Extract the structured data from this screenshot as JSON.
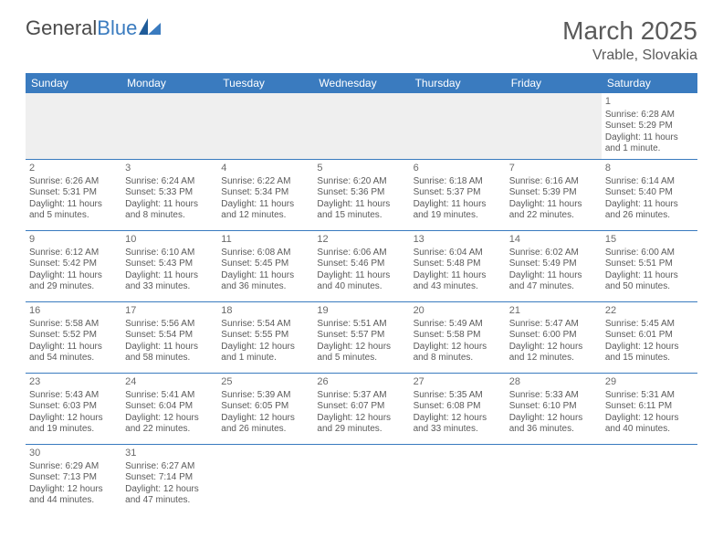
{
  "brand": {
    "part1": "General",
    "part2": "Blue"
  },
  "title": "March 2025",
  "location": "Vrable, Slovakia",
  "colors": {
    "header_bg": "#3a7bbf",
    "border": "#3a7bbf",
    "blank_bg": "#efefef",
    "text": "#5a5a5a",
    "white": "#ffffff"
  },
  "day_headers": [
    "Sunday",
    "Monday",
    "Tuesday",
    "Wednesday",
    "Thursday",
    "Friday",
    "Saturday"
  ],
  "weeks": [
    [
      {
        "n": "",
        "sr": "",
        "ss": "",
        "dl": ""
      },
      {
        "n": "",
        "sr": "",
        "ss": "",
        "dl": ""
      },
      {
        "n": "",
        "sr": "",
        "ss": "",
        "dl": ""
      },
      {
        "n": "",
        "sr": "",
        "ss": "",
        "dl": ""
      },
      {
        "n": "",
        "sr": "",
        "ss": "",
        "dl": ""
      },
      {
        "n": "",
        "sr": "",
        "ss": "",
        "dl": ""
      },
      {
        "n": "1",
        "sr": "Sunrise: 6:28 AM",
        "ss": "Sunset: 5:29 PM",
        "dl": "Daylight: 11 hours and 1 minute."
      }
    ],
    [
      {
        "n": "2",
        "sr": "Sunrise: 6:26 AM",
        "ss": "Sunset: 5:31 PM",
        "dl": "Daylight: 11 hours and 5 minutes."
      },
      {
        "n": "3",
        "sr": "Sunrise: 6:24 AM",
        "ss": "Sunset: 5:33 PM",
        "dl": "Daylight: 11 hours and 8 minutes."
      },
      {
        "n": "4",
        "sr": "Sunrise: 6:22 AM",
        "ss": "Sunset: 5:34 PM",
        "dl": "Daylight: 11 hours and 12 minutes."
      },
      {
        "n": "5",
        "sr": "Sunrise: 6:20 AM",
        "ss": "Sunset: 5:36 PM",
        "dl": "Daylight: 11 hours and 15 minutes."
      },
      {
        "n": "6",
        "sr": "Sunrise: 6:18 AM",
        "ss": "Sunset: 5:37 PM",
        "dl": "Daylight: 11 hours and 19 minutes."
      },
      {
        "n": "7",
        "sr": "Sunrise: 6:16 AM",
        "ss": "Sunset: 5:39 PM",
        "dl": "Daylight: 11 hours and 22 minutes."
      },
      {
        "n": "8",
        "sr": "Sunrise: 6:14 AM",
        "ss": "Sunset: 5:40 PM",
        "dl": "Daylight: 11 hours and 26 minutes."
      }
    ],
    [
      {
        "n": "9",
        "sr": "Sunrise: 6:12 AM",
        "ss": "Sunset: 5:42 PM",
        "dl": "Daylight: 11 hours and 29 minutes."
      },
      {
        "n": "10",
        "sr": "Sunrise: 6:10 AM",
        "ss": "Sunset: 5:43 PM",
        "dl": "Daylight: 11 hours and 33 minutes."
      },
      {
        "n": "11",
        "sr": "Sunrise: 6:08 AM",
        "ss": "Sunset: 5:45 PM",
        "dl": "Daylight: 11 hours and 36 minutes."
      },
      {
        "n": "12",
        "sr": "Sunrise: 6:06 AM",
        "ss": "Sunset: 5:46 PM",
        "dl": "Daylight: 11 hours and 40 minutes."
      },
      {
        "n": "13",
        "sr": "Sunrise: 6:04 AM",
        "ss": "Sunset: 5:48 PM",
        "dl": "Daylight: 11 hours and 43 minutes."
      },
      {
        "n": "14",
        "sr": "Sunrise: 6:02 AM",
        "ss": "Sunset: 5:49 PM",
        "dl": "Daylight: 11 hours and 47 minutes."
      },
      {
        "n": "15",
        "sr": "Sunrise: 6:00 AM",
        "ss": "Sunset: 5:51 PM",
        "dl": "Daylight: 11 hours and 50 minutes."
      }
    ],
    [
      {
        "n": "16",
        "sr": "Sunrise: 5:58 AM",
        "ss": "Sunset: 5:52 PM",
        "dl": "Daylight: 11 hours and 54 minutes."
      },
      {
        "n": "17",
        "sr": "Sunrise: 5:56 AM",
        "ss": "Sunset: 5:54 PM",
        "dl": "Daylight: 11 hours and 58 minutes."
      },
      {
        "n": "18",
        "sr": "Sunrise: 5:54 AM",
        "ss": "Sunset: 5:55 PM",
        "dl": "Daylight: 12 hours and 1 minute."
      },
      {
        "n": "19",
        "sr": "Sunrise: 5:51 AM",
        "ss": "Sunset: 5:57 PM",
        "dl": "Daylight: 12 hours and 5 minutes."
      },
      {
        "n": "20",
        "sr": "Sunrise: 5:49 AM",
        "ss": "Sunset: 5:58 PM",
        "dl": "Daylight: 12 hours and 8 minutes."
      },
      {
        "n": "21",
        "sr": "Sunrise: 5:47 AM",
        "ss": "Sunset: 6:00 PM",
        "dl": "Daylight: 12 hours and 12 minutes."
      },
      {
        "n": "22",
        "sr": "Sunrise: 5:45 AM",
        "ss": "Sunset: 6:01 PM",
        "dl": "Daylight: 12 hours and 15 minutes."
      }
    ],
    [
      {
        "n": "23",
        "sr": "Sunrise: 5:43 AM",
        "ss": "Sunset: 6:03 PM",
        "dl": "Daylight: 12 hours and 19 minutes."
      },
      {
        "n": "24",
        "sr": "Sunrise: 5:41 AM",
        "ss": "Sunset: 6:04 PM",
        "dl": "Daylight: 12 hours and 22 minutes."
      },
      {
        "n": "25",
        "sr": "Sunrise: 5:39 AM",
        "ss": "Sunset: 6:05 PM",
        "dl": "Daylight: 12 hours and 26 minutes."
      },
      {
        "n": "26",
        "sr": "Sunrise: 5:37 AM",
        "ss": "Sunset: 6:07 PM",
        "dl": "Daylight: 12 hours and 29 minutes."
      },
      {
        "n": "27",
        "sr": "Sunrise: 5:35 AM",
        "ss": "Sunset: 6:08 PM",
        "dl": "Daylight: 12 hours and 33 minutes."
      },
      {
        "n": "28",
        "sr": "Sunrise: 5:33 AM",
        "ss": "Sunset: 6:10 PM",
        "dl": "Daylight: 12 hours and 36 minutes."
      },
      {
        "n": "29",
        "sr": "Sunrise: 5:31 AM",
        "ss": "Sunset: 6:11 PM",
        "dl": "Daylight: 12 hours and 40 minutes."
      }
    ],
    [
      {
        "n": "30",
        "sr": "Sunrise: 6:29 AM",
        "ss": "Sunset: 7:13 PM",
        "dl": "Daylight: 12 hours and 44 minutes."
      },
      {
        "n": "31",
        "sr": "Sunrise: 6:27 AM",
        "ss": "Sunset: 7:14 PM",
        "dl": "Daylight: 12 hours and 47 minutes."
      },
      {
        "n": "",
        "sr": "",
        "ss": "",
        "dl": ""
      },
      {
        "n": "",
        "sr": "",
        "ss": "",
        "dl": ""
      },
      {
        "n": "",
        "sr": "",
        "ss": "",
        "dl": ""
      },
      {
        "n": "",
        "sr": "",
        "ss": "",
        "dl": ""
      },
      {
        "n": "",
        "sr": "",
        "ss": "",
        "dl": ""
      }
    ]
  ]
}
